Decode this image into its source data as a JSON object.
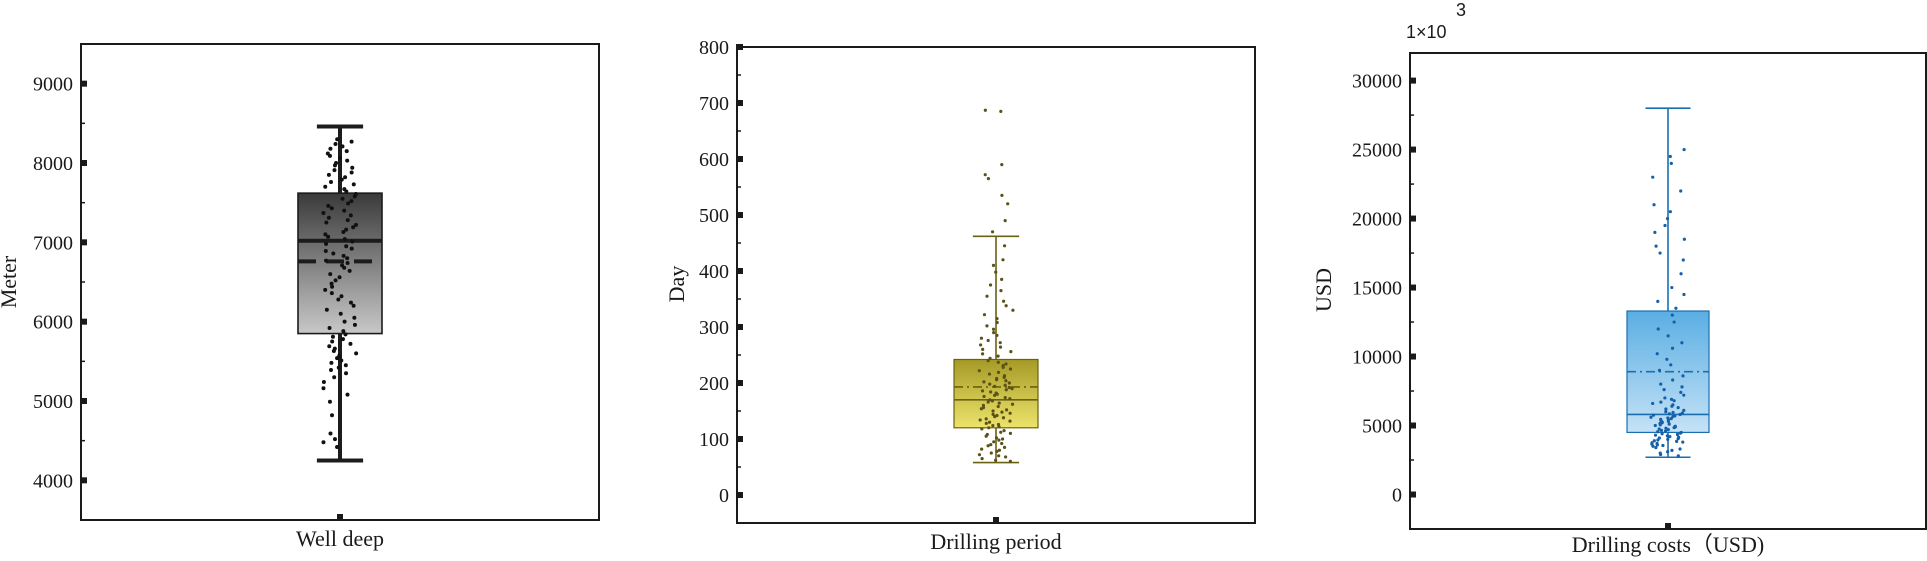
{
  "chart_data": [
    {
      "type": "box",
      "xlabel": "Well deep",
      "ylabel": "Meter",
      "ylim": [
        3500,
        9500
      ],
      "yticks": [
        4000,
        5000,
        6000,
        7000,
        8000,
        9000
      ],
      "box_colors": {
        "top": "#3a3a3a",
        "bottom": "#c8c8c8",
        "stroke": "#1c1c1c",
        "points": "#111111"
      },
      "stats": {
        "min": 4250,
        "q1": 5850,
        "median": 7020,
        "mean": 6760,
        "q3": 7620,
        "max": 8460
      },
      "points": [
        4420,
        4480,
        4520,
        4590,
        4820,
        4990,
        5080,
        5160,
        5240,
        5300,
        5350,
        5390,
        5420,
        5450,
        5480,
        5510,
        5540,
        5570,
        5600,
        5630,
        5660,
        5690,
        5720,
        5750,
        5780,
        5810,
        5840,
        5880,
        5920,
        5960,
        6000,
        6050,
        6100,
        6150,
        6200,
        6240,
        6280,
        6320,
        6360,
        6400,
        6440,
        6480,
        6520,
        6560,
        6600,
        6640,
        6680,
        6710,
        6740,
        6770,
        6800,
        6830,
        6860,
        6890,
        6920,
        6950,
        6980,
        7010,
        7040,
        7070,
        7100,
        7130,
        7160,
        7190,
        7220,
        7250,
        7280,
        7310,
        7340,
        7370,
        7400,
        7430,
        7460,
        7490,
        7520,
        7550,
        7580,
        7610,
        7640,
        7670,
        7700,
        7730,
        7760,
        7790,
        7820,
        7850,
        7880,
        7910,
        7940,
        7970,
        8000,
        8030,
        8060,
        8090,
        8120,
        8150,
        8180,
        8210,
        8240,
        8270,
        8300
      ]
    },
    {
      "type": "box",
      "xlabel": "Drilling period",
      "ylabel": "Day",
      "ylim": [
        -50,
        800
      ],
      "yticks": [
        0,
        100,
        200,
        300,
        400,
        500,
        600,
        700,
        800
      ],
      "box_colors": {
        "top": "#a59a26",
        "bottom": "#ece36b",
        "stroke": "#6b6112",
        "points": "#5a5218"
      },
      "stats": {
        "min": 58,
        "q1": 120,
        "median": 170,
        "mean": 193,
        "q3": 242,
        "max": 462
      },
      "points": [
        60,
        62,
        65,
        68,
        70,
        72,
        75,
        78,
        80,
        82,
        85,
        88,
        90,
        92,
        95,
        98,
        100,
        102,
        105,
        108,
        110,
        112,
        115,
        118,
        120,
        122,
        124,
        126,
        128,
        130,
        132,
        134,
        136,
        138,
        140,
        142,
        144,
        146,
        148,
        150,
        152,
        154,
        156,
        158,
        160,
        162,
        164,
        166,
        168,
        170,
        172,
        174,
        176,
        178,
        180,
        182,
        184,
        186,
        188,
        190,
        192,
        194,
        196,
        198,
        200,
        202,
        204,
        206,
        208,
        210,
        213,
        216,
        219,
        222,
        225,
        228,
        231,
        234,
        237,
        240,
        244,
        248,
        252,
        256,
        260,
        264,
        268,
        272,
        276,
        280,
        285,
        290,
        296,
        302,
        308,
        315,
        322,
        330,
        338,
        346,
        355,
        365,
        375,
        385,
        398,
        410,
        420,
        445,
        470,
        490,
        520,
        535,
        565,
        572,
        590,
        685,
        687
      ]
    },
    {
      "type": "box",
      "xlabel": "Drilling costs（USD)",
      "ylabel": "USD",
      "ylim": [
        -2500,
        32000
      ],
      "yticks": [
        0,
        5000,
        10000,
        15000,
        20000,
        25000,
        30000
      ],
      "multiplier": "1×10",
      "multiplier_exp": "3",
      "box_colors": {
        "top": "#5aaee3",
        "bottom": "#c5e2f6",
        "stroke": "#1a6fb0",
        "points": "#1560a8"
      },
      "stats": {
        "min": 2700,
        "q1": 4500,
        "median": 5800,
        "mean": 8900,
        "q3": 13300,
        "max": 28000
      },
      "points": [
        2800,
        2900,
        3000,
        3100,
        3200,
        3300,
        3400,
        3500,
        3550,
        3600,
        3650,
        3700,
        3750,
        3800,
        3850,
        3900,
        3950,
        4000,
        4050,
        4100,
        4150,
        4200,
        4250,
        4300,
        4350,
        4400,
        4450,
        4500,
        4550,
        4600,
        4650,
        4700,
        4750,
        4800,
        4850,
        4900,
        4950,
        5000,
        5050,
        5100,
        5150,
        5200,
        5250,
        5300,
        5350,
        5400,
        5450,
        5500,
        5550,
        5600,
        5650,
        5700,
        5750,
        5800,
        5850,
        5900,
        5950,
        6000,
        6100,
        6200,
        6300,
        6400,
        6500,
        6600,
        6700,
        6800,
        6900,
        7000,
        7200,
        7400,
        7600,
        7800,
        8000,
        8300,
        8600,
        9000,
        9400,
        9800,
        10200,
        10600,
        11000,
        11500,
        12000,
        12500,
        13000,
        13500,
        14000,
        14500,
        15000,
        16000,
        17000,
        17500,
        18000,
        18500,
        19000,
        19500,
        20000,
        20500,
        21000,
        22000,
        23000,
        24000,
        24500,
        25000
      ]
    }
  ]
}
